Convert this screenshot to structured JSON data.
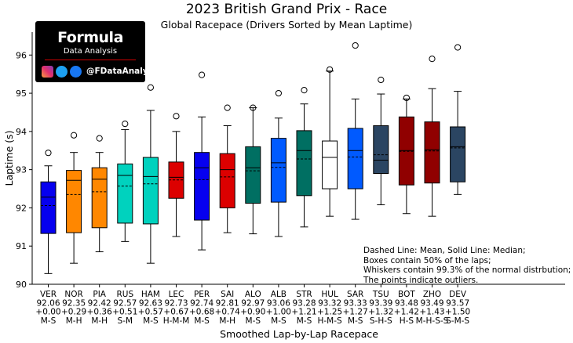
{
  "chart_data": {
    "type": "box",
    "title": "2023 British Grand Prix - Race",
    "subtitle": "Global Racepace (Drivers Sorted by Mean Laptime)",
    "xlabel": "Smoothed Lap-by-Lap Racepace",
    "ylabel": "Laptime (s)",
    "ylim": [
      90,
      96.6
    ],
    "yticks": [
      90,
      91,
      92,
      93,
      94,
      95,
      96
    ],
    "drivers": [
      {
        "code": "VER",
        "mean": "92.06",
        "delta": "+0.00",
        "tyres": "M-S",
        "color": "#0600ef",
        "whisker_low": 90.28,
        "q1": 91.33,
        "median": 92.28,
        "mean_value": 92.06,
        "q3": 92.68,
        "whisker_high": 93.1,
        "outliers": [
          93.44
        ]
      },
      {
        "code": "NOR",
        "mean": "92.35",
        "delta": "+0.29",
        "tyres": "M-H",
        "color": "#ff8700",
        "whisker_low": 90.55,
        "q1": 91.35,
        "median": 92.72,
        "mean_value": 92.35,
        "q3": 92.98,
        "whisker_high": 93.45,
        "outliers": [
          93.9
        ]
      },
      {
        "code": "PIA",
        "mean": "92.42",
        "delta": "+0.36",
        "tyres": "M-H",
        "color": "#ff8700",
        "whisker_low": 90.85,
        "q1": 91.48,
        "median": 92.75,
        "mean_value": 92.42,
        "q3": 93.05,
        "whisker_high": 93.45,
        "outliers": [
          93.82
        ]
      },
      {
        "code": "RUS",
        "mean": "92.57",
        "delta": "+0.51",
        "tyres": "S-M",
        "color": "#00d2be",
        "whisker_low": 91.12,
        "q1": 91.6,
        "median": 92.85,
        "mean_value": 92.57,
        "q3": 93.15,
        "whisker_high": 94.05,
        "outliers": [
          94.2
        ]
      },
      {
        "code": "HAM",
        "mean": "92.63",
        "delta": "+0.57",
        "tyres": "M-S",
        "color": "#00d2be",
        "whisker_low": 90.55,
        "q1": 91.58,
        "median": 92.82,
        "mean_value": 92.63,
        "q3": 93.32,
        "whisker_high": 94.55,
        "outliers": [
          95.15
        ]
      },
      {
        "code": "LEC",
        "mean": "92.73",
        "delta": "+0.67",
        "tyres": "H-M-M",
        "color": "#dc0000",
        "whisker_low": 91.25,
        "q1": 92.25,
        "median": 92.8,
        "mean_value": 92.73,
        "q3": 93.2,
        "whisker_high": 94.0,
        "outliers": [
          94.4
        ]
      },
      {
        "code": "PER",
        "mean": "92.74",
        "delta": "+0.68",
        "tyres": "M-S",
        "color": "#0600ef",
        "whisker_low": 90.9,
        "q1": 91.68,
        "median": 93.05,
        "mean_value": 92.74,
        "q3": 93.45,
        "whisker_high": 94.38,
        "outliers": [
          95.48
        ]
      },
      {
        "code": "SAI",
        "mean": "92.81",
        "delta": "+0.74",
        "tyres": "M-H",
        "color": "#dc0000",
        "whisker_low": 91.35,
        "q1": 92.0,
        "median": 93.0,
        "mean_value": 92.81,
        "q3": 93.42,
        "whisker_high": 94.15,
        "outliers": [
          94.62
        ]
      },
      {
        "code": "ALO",
        "mean": "92.97",
        "delta": "+0.90",
        "tyres": "M-S",
        "color": "#006f62",
        "whisker_low": 91.32,
        "q1": 92.12,
        "median": 93.05,
        "mean_value": 92.97,
        "q3": 93.6,
        "whisker_high": 94.62,
        "outliers": [
          94.62
        ]
      },
      {
        "code": "ALB",
        "mean": "93.06",
        "delta": "+1.00",
        "tyres": "M-S",
        "color": "#005aff",
        "whisker_low": 91.25,
        "q1": 92.15,
        "median": 93.18,
        "mean_value": 93.06,
        "q3": 93.82,
        "whisker_high": 94.35,
        "outliers": [
          95.0
        ]
      },
      {
        "code": "STR",
        "mean": "93.28",
        "delta": "+1.21",
        "tyres": "M-S",
        "color": "#006f62",
        "whisker_low": 91.5,
        "q1": 92.32,
        "median": 93.5,
        "mean_value": 93.28,
        "q3": 94.02,
        "whisker_high": 94.72,
        "outliers": [
          95.08
        ]
      },
      {
        "code": "HUL",
        "mean": "93.32",
        "delta": "+1.25",
        "tyres": "H-M-S",
        "color": "#ffffff",
        "whisker_low": 91.78,
        "q1": 92.5,
        "median": 93.32,
        "mean_value": 93.32,
        "q3": 93.75,
        "whisker_high": 95.58,
        "outliers": [
          95.62
        ]
      },
      {
        "code": "SAR",
        "mean": "93.33",
        "delta": "+1.27",
        "tyres": "M-S",
        "color": "#005aff",
        "whisker_low": 91.7,
        "q1": 92.5,
        "median": 93.5,
        "mean_value": 93.33,
        "q3": 94.08,
        "whisker_high": 94.85,
        "outliers": [
          96.25
        ]
      },
      {
        "code": "TSU",
        "mean": "93.39",
        "delta": "+1.32",
        "tyres": "S-H-S",
        "color": "#2b4562",
        "whisker_low": 92.08,
        "q1": 92.9,
        "median": 93.25,
        "mean_value": 93.39,
        "q3": 94.15,
        "whisker_high": 94.98,
        "outliers": [
          95.35
        ]
      },
      {
        "code": "BOT",
        "mean": "93.48",
        "delta": "+1.42",
        "tyres": "H-S",
        "color": "#900000",
        "whisker_low": 91.85,
        "q1": 92.6,
        "median": 93.5,
        "mean_value": 93.48,
        "q3": 94.38,
        "whisker_high": 94.85,
        "outliers": [
          94.88
        ]
      },
      {
        "code": "ZHO",
        "mean": "93.49",
        "delta": "+1.43",
        "tyres": "M-H-S-S",
        "color": "#900000",
        "whisker_low": 91.78,
        "q1": 92.65,
        "median": 93.52,
        "mean_value": 93.49,
        "q3": 94.25,
        "whisker_high": 95.12,
        "outliers": [
          95.9
        ]
      },
      {
        "code": "DEV",
        "mean": "93.57",
        "delta": "+1.50",
        "tyres": "S-M-S",
        "color": "#2b4562",
        "whisker_low": 92.35,
        "q1": 92.68,
        "median": 93.6,
        "mean_value": 93.57,
        "q3": 94.12,
        "whisker_high": 95.05,
        "outliers": [
          96.2
        ]
      }
    ],
    "annotation": [
      "Dashed Line: Mean, Solid Line: Median;",
      "Boxes contain 50% of the laps;",
      "Whiskers contain 99.3% of the normal distrbution;",
      "The points indicate outliers."
    ]
  },
  "logo": {
    "title": "Formula",
    "subtitle": "Data Analysis",
    "handle": "@FDataAnalysis",
    "icons": [
      "instagram-icon",
      "twitter-icon",
      "facebook-icon"
    ]
  }
}
